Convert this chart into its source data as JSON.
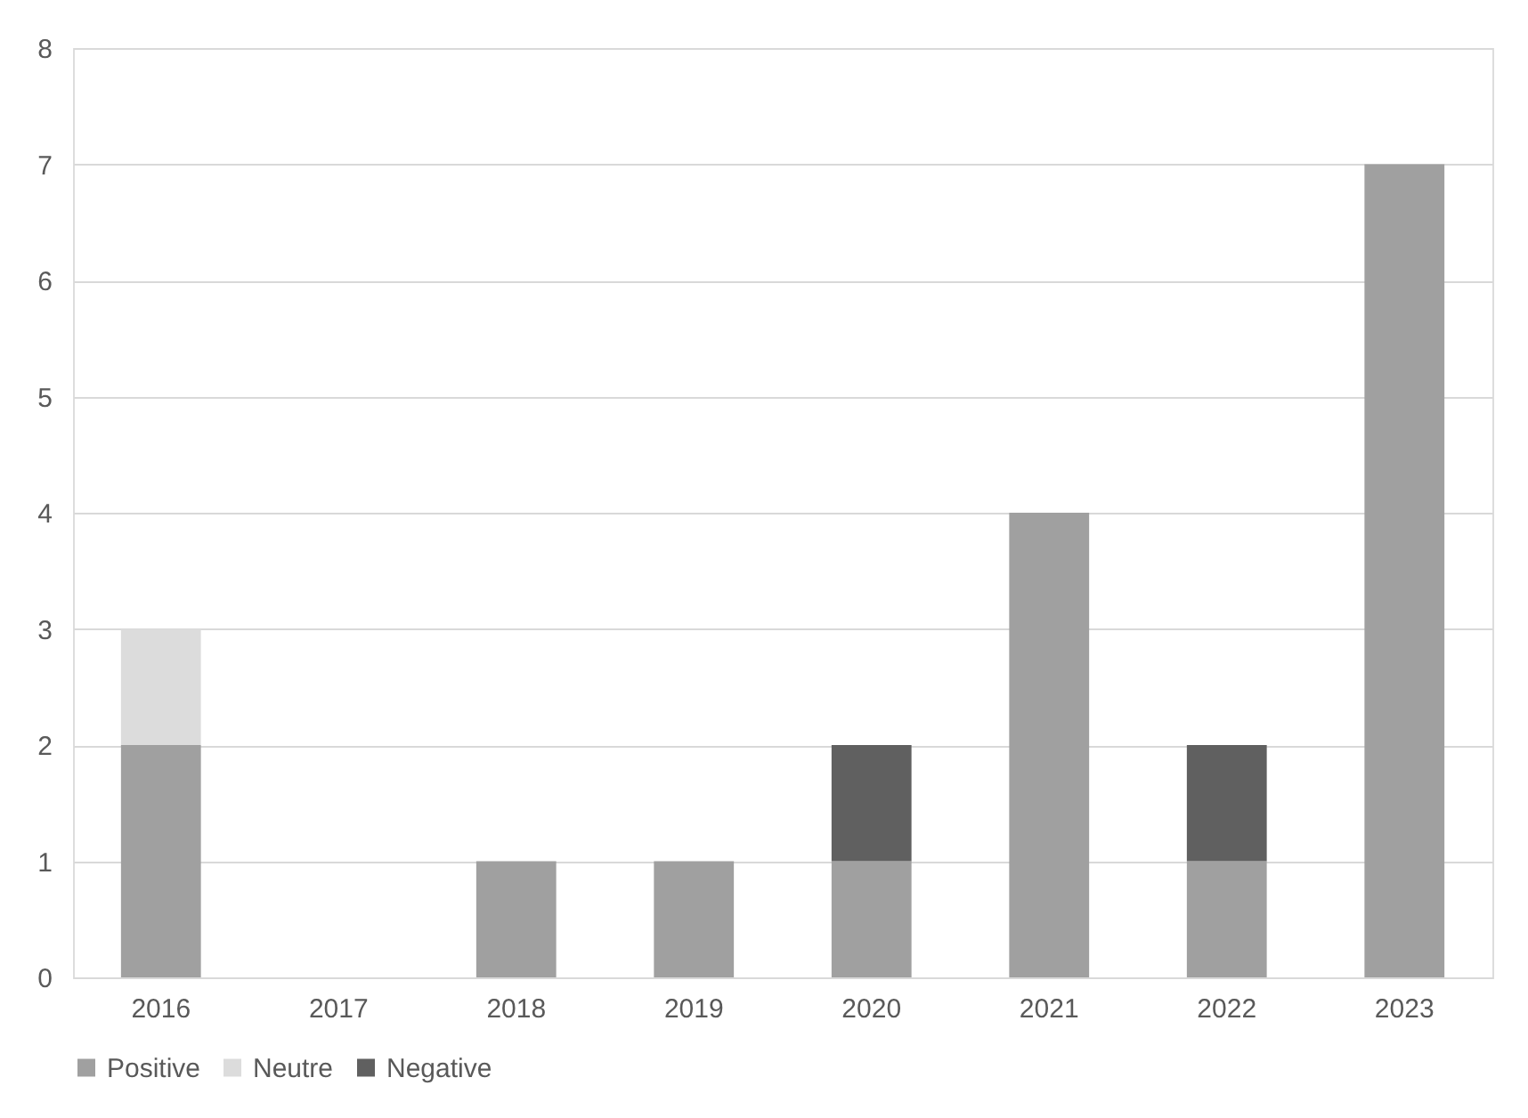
{
  "chart_data": {
    "type": "bar",
    "stacked": true,
    "categories": [
      "2016",
      "2017",
      "2018",
      "2019",
      "2020",
      "2021",
      "2022",
      "2023"
    ],
    "series": [
      {
        "name": "Positive",
        "color": "#a0a0a0",
        "values": [
          2,
          null,
          1,
          1,
          1,
          4,
          1,
          7
        ]
      },
      {
        "name": "Neutre",
        "color": "#dcdcdc",
        "values": [
          1,
          null,
          null,
          null,
          null,
          null,
          null,
          null
        ]
      },
      {
        "name": "Negative",
        "color": "#606060",
        "values": [
          null,
          null,
          null,
          null,
          1,
          null,
          1,
          null
        ]
      }
    ],
    "ylim": [
      0,
      8
    ],
    "yticks": [
      0,
      1,
      2,
      3,
      4,
      5,
      6,
      7,
      8
    ],
    "grid": "y",
    "legend": "bottom"
  }
}
